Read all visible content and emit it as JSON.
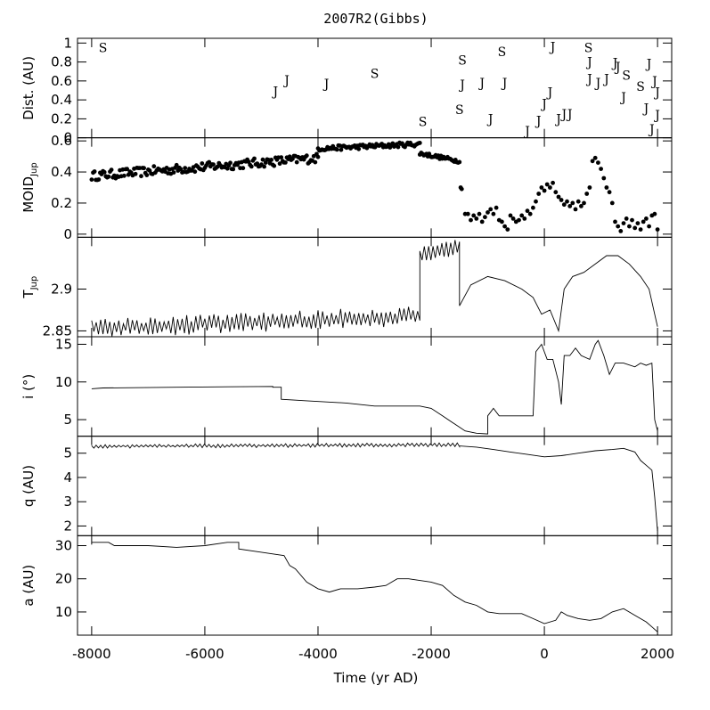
{
  "chart_data": {
    "type": "line",
    "title": "2007R2(Gibbs)",
    "xlabel": "Time (yr AD)",
    "xlim": [
      -8250,
      2250
    ],
    "xticks": [
      -8000,
      -6000,
      -4000,
      -2000,
      0,
      2000
    ],
    "panels": [
      {
        "id": "dist",
        "ylabel": "Dist. (AU)",
        "ylim": [
          0,
          1.05
        ],
        "yticks": [
          0,
          0.2,
          0.4,
          0.6,
          0.8,
          1
        ],
        "kind": "markers",
        "series": [
          {
            "name": "S",
            "points": [
              [
                -7800,
                0.95
              ],
              [
                -3000,
                0.68
              ],
              [
                -2150,
                0.17
              ],
              [
                -1450,
                0.82
              ],
              [
                -1500,
                0.3
              ],
              [
                -750,
                0.91
              ],
              [
                780,
                0.95
              ],
              [
                1700,
                0.54
              ],
              [
                1450,
                0.66
              ]
            ]
          },
          {
            "name": "J",
            "points": [
              [
                -4750,
                0.49
              ],
              [
                -4550,
                0.61
              ],
              [
                -3850,
                0.57
              ],
              [
                -1450,
                0.56
              ],
              [
                -1100,
                0.58
              ],
              [
                -950,
                0.2
              ],
              [
                -700,
                0.58
              ],
              [
                -300,
                0.07
              ],
              [
                -100,
                0.18
              ],
              [
                0,
                0.36
              ],
              [
                100,
                0.48
              ],
              [
                150,
                0.96
              ],
              [
                250,
                0.2
              ],
              [
                350,
                0.25
              ],
              [
                450,
                0.25
              ],
              [
                800,
                0.8
              ],
              [
                800,
                0.62
              ],
              [
                950,
                0.58
              ],
              [
                1100,
                0.62
              ],
              [
                1250,
                0.79
              ],
              [
                1300,
                0.75
              ],
              [
                1400,
                0.43
              ],
              [
                1800,
                0.31
              ],
              [
                1850,
                0.78
              ],
              [
                1900,
                0.09
              ],
              [
                1950,
                0.6
              ],
              [
                2000,
                0.24
              ],
              [
                2000,
                0.48
              ]
            ]
          }
        ]
      },
      {
        "id": "moid",
        "ylabel": "MOID_Jup",
        "ylim": [
          -0.02,
          0.62
        ],
        "yticks": [
          0,
          0.2,
          0.4,
          0.6
        ],
        "kind": "dots",
        "segments": [
          {
            "x_start": -8000,
            "x_end": -4000,
            "y_start": 0.375,
            "y_end": 0.49,
            "noise": 0.03,
            "n": 160
          },
          {
            "x_start": -4000,
            "x_end": -2200,
            "y_start": 0.55,
            "y_end": 0.58,
            "noise": 0.015,
            "n": 75
          },
          {
            "x_start": -2200,
            "x_end": -1500,
            "y_start": 0.52,
            "y_end": 0.47,
            "noise": 0.012,
            "n": 30
          }
        ],
        "points": [
          [
            -1480,
            0.3
          ],
          [
            -1460,
            0.29
          ],
          [
            -1400,
            0.13
          ],
          [
            -1350,
            0.13
          ],
          [
            -1300,
            0.09
          ],
          [
            -1250,
            0.12
          ],
          [
            -1200,
            0.1
          ],
          [
            -1150,
            0.13
          ],
          [
            -1100,
            0.08
          ],
          [
            -1050,
            0.11
          ],
          [
            -1000,
            0.14
          ],
          [
            -950,
            0.16
          ],
          [
            -900,
            0.13
          ],
          [
            -850,
            0.17
          ],
          [
            -800,
            0.09
          ],
          [
            -750,
            0.08
          ],
          [
            -700,
            0.05
          ],
          [
            -650,
            0.03
          ],
          [
            -600,
            0.12
          ],
          [
            -550,
            0.1
          ],
          [
            -500,
            0.08
          ],
          [
            -450,
            0.09
          ],
          [
            -400,
            0.12
          ],
          [
            -350,
            0.1
          ],
          [
            -300,
            0.15
          ],
          [
            -250,
            0.13
          ],
          [
            -200,
            0.17
          ],
          [
            -150,
            0.21
          ],
          [
            -100,
            0.26
          ],
          [
            -50,
            0.3
          ],
          [
            0,
            0.28
          ],
          [
            50,
            0.32
          ],
          [
            100,
            0.3
          ],
          [
            150,
            0.33
          ],
          [
            200,
            0.27
          ],
          [
            250,
            0.24
          ],
          [
            300,
            0.22
          ],
          [
            350,
            0.19
          ],
          [
            400,
            0.21
          ],
          [
            450,
            0.18
          ],
          [
            500,
            0.2
          ],
          [
            550,
            0.16
          ],
          [
            600,
            0.21
          ],
          [
            650,
            0.18
          ],
          [
            700,
            0.2
          ],
          [
            750,
            0.26
          ],
          [
            800,
            0.3
          ],
          [
            850,
            0.47
          ],
          [
            900,
            0.49
          ],
          [
            950,
            0.46
          ],
          [
            1000,
            0.42
          ],
          [
            1050,
            0.36
          ],
          [
            1100,
            0.3
          ],
          [
            1150,
            0.27
          ],
          [
            1200,
            0.2
          ],
          [
            1250,
            0.08
          ],
          [
            1300,
            0.05
          ],
          [
            1350,
            0.02
          ],
          [
            1400,
            0.07
          ],
          [
            1450,
            0.1
          ],
          [
            1500,
            0.05
          ],
          [
            1550,
            0.09
          ],
          [
            1600,
            0.04
          ],
          [
            1650,
            0.07
          ],
          [
            1700,
            0.03
          ],
          [
            1750,
            0.08
          ],
          [
            1800,
            0.1
          ],
          [
            1850,
            0.05
          ],
          [
            1900,
            0.12
          ],
          [
            1950,
            0.13
          ],
          [
            2000,
            0.03
          ]
        ]
      },
      {
        "id": "tjup",
        "ylabel": "T_Jup",
        "ylim": [
          2.843,
          2.962
        ],
        "yticks": [
          2.85,
          2.9
        ],
        "kind": "line",
        "segments": [
          {
            "x_start": -8000,
            "x_end": -2200,
            "y_start": 2.853,
            "y_end": 2.868,
            "noise": 0.012,
            "step": 40
          },
          {
            "x_start": -2200,
            "x_end": -1500,
            "y_start": 2.94,
            "y_end": 2.95,
            "noise": 0.01,
            "step": 40
          }
        ],
        "points": [
          [
            -1500,
            2.88
          ],
          [
            -1300,
            2.905
          ],
          [
            -1000,
            2.915
          ],
          [
            -700,
            2.91
          ],
          [
            -400,
            2.9
          ],
          [
            -200,
            2.89
          ],
          [
            -50,
            2.87
          ],
          [
            100,
            2.875
          ],
          [
            250,
            2.85
          ],
          [
            350,
            2.9
          ],
          [
            500,
            2.915
          ],
          [
            700,
            2.92
          ],
          [
            900,
            2.93
          ],
          [
            1100,
            2.94
          ],
          [
            1300,
            2.94
          ],
          [
            1500,
            2.93
          ],
          [
            1700,
            2.915
          ],
          [
            1850,
            2.9
          ],
          [
            1950,
            2.87
          ],
          [
            2000,
            2.855
          ]
        ]
      },
      {
        "id": "incl",
        "ylabel": "i (°)",
        "ylim": [
          2.8,
          16
        ],
        "yticks": [
          5,
          10,
          15
        ],
        "kind": "line",
        "points": [
          [
            -8000,
            9.1
          ],
          [
            -7800,
            9.2
          ],
          [
            -6500,
            9.3
          ],
          [
            -4800,
            9.4
          ],
          [
            -4800,
            9.3
          ],
          [
            -4650,
            9.3
          ],
          [
            -4650,
            7.7
          ],
          [
            -4200,
            7.5
          ],
          [
            -3500,
            7.2
          ],
          [
            -3000,
            6.8
          ],
          [
            -2200,
            6.8
          ],
          [
            -2000,
            6.5
          ],
          [
            -1800,
            5.5
          ],
          [
            -1600,
            4.5
          ],
          [
            -1400,
            3.5
          ],
          [
            -1200,
            3.2
          ],
          [
            -1000,
            3.1
          ],
          [
            -1000,
            5.5
          ],
          [
            -900,
            6.5
          ],
          [
            -800,
            5.5
          ],
          [
            -600,
            5.5
          ],
          [
            -300,
            5.5
          ],
          [
            -200,
            5.5
          ],
          [
            -150,
            14
          ],
          [
            -50,
            15
          ],
          [
            50,
            13
          ],
          [
            150,
            13
          ],
          [
            250,
            10
          ],
          [
            300,
            7
          ],
          [
            350,
            13.5
          ],
          [
            450,
            13.5
          ],
          [
            550,
            14.5
          ],
          [
            650,
            13.5
          ],
          [
            800,
            13
          ],
          [
            900,
            15
          ],
          [
            950,
            15.5
          ],
          [
            1050,
            13.5
          ],
          [
            1150,
            11
          ],
          [
            1250,
            12.5
          ],
          [
            1400,
            12.5
          ],
          [
            1600,
            12
          ],
          [
            1700,
            12.5
          ],
          [
            1800,
            12.2
          ],
          [
            1900,
            12.5
          ],
          [
            1950,
            5
          ],
          [
            2000,
            3.5
          ]
        ]
      },
      {
        "id": "q",
        "ylabel": "q (AU)",
        "ylim": [
          1.6,
          5.7
        ],
        "yticks": [
          2,
          3,
          4,
          5
        ],
        "kind": "line",
        "segments": [
          {
            "x_start": -8000,
            "x_end": -1500,
            "y_start": 5.28,
            "y_end": 5.35,
            "noise": 0.08,
            "step": 40
          }
        ],
        "points": [
          [
            -1500,
            5.3
          ],
          [
            -1200,
            5.25
          ],
          [
            -900,
            5.15
          ],
          [
            -600,
            5.05
          ],
          [
            -300,
            4.95
          ],
          [
            0,
            4.85
          ],
          [
            300,
            4.9
          ],
          [
            600,
            5.0
          ],
          [
            900,
            5.1
          ],
          [
            1200,
            5.15
          ],
          [
            1400,
            5.2
          ],
          [
            1600,
            5.05
          ],
          [
            1700,
            4.7
          ],
          [
            1800,
            4.5
          ],
          [
            1900,
            4.3
          ],
          [
            1950,
            3.2
          ],
          [
            2000,
            1.8
          ]
        ]
      },
      {
        "id": "a",
        "ylabel": "a (AU)",
        "ylim": [
          3,
          33
        ],
        "yticks": [
          10,
          20,
          30
        ],
        "kind": "line",
        "points": [
          [
            -8000,
            31
          ],
          [
            -7700,
            31
          ],
          [
            -7600,
            30
          ],
          [
            -7000,
            30
          ],
          [
            -6500,
            29.5
          ],
          [
            -6000,
            30
          ],
          [
            -5600,
            31
          ],
          [
            -5400,
            31
          ],
          [
            -5400,
            29
          ],
          [
            -5000,
            28
          ],
          [
            -4600,
            27
          ],
          [
            -4500,
            24
          ],
          [
            -4400,
            23
          ],
          [
            -4200,
            19
          ],
          [
            -4000,
            17
          ],
          [
            -3800,
            16
          ],
          [
            -3600,
            17
          ],
          [
            -3300,
            17
          ],
          [
            -3000,
            17.5
          ],
          [
            -2800,
            18
          ],
          [
            -2600,
            20
          ],
          [
            -2400,
            20
          ],
          [
            -2200,
            19.5
          ],
          [
            -2000,
            19
          ],
          [
            -1800,
            18
          ],
          [
            -1600,
            15
          ],
          [
            -1400,
            13
          ],
          [
            -1200,
            12
          ],
          [
            -1000,
            10
          ],
          [
            -800,
            9.5
          ],
          [
            -600,
            9.5
          ],
          [
            -400,
            9.5
          ],
          [
            -200,
            8
          ],
          [
            0,
            6.5
          ],
          [
            200,
            7.5
          ],
          [
            300,
            10
          ],
          [
            400,
            9
          ],
          [
            600,
            8
          ],
          [
            800,
            7.5
          ],
          [
            1000,
            8
          ],
          [
            1200,
            10
          ],
          [
            1400,
            11
          ],
          [
            1600,
            9
          ],
          [
            1800,
            7
          ],
          [
            1900,
            5.5
          ],
          [
            2000,
            4
          ]
        ]
      }
    ]
  }
}
